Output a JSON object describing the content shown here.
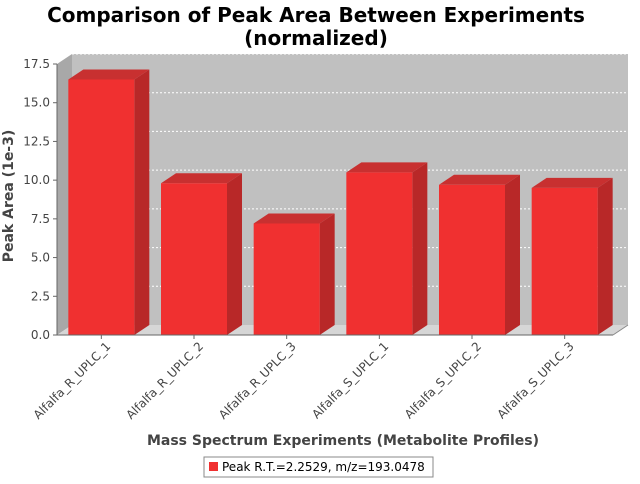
{
  "chart_data": {
    "type": "bar",
    "title": "Comparison of Peak Area Between Experiments",
    "subtitle": "(normalized)",
    "xlabel": "Mass Spectrum Experiments (Metabolite Profiles)",
    "ylabel": "Peak Area (1e-3)",
    "ylim": [
      0,
      17.5
    ],
    "yticks": [
      "0.0",
      "2.5",
      "5.0",
      "7.5",
      "10.0",
      "12.5",
      "15.0",
      "17.5"
    ],
    "grid": true,
    "legend_position": "bottom",
    "categories": [
      "Alfalfa_R_UPLC_1",
      "Alfalfa_R_UPLC_2",
      "Alfalfa_R_UPLC_3",
      "Alfalfa_S_UPLC_1",
      "Alfalfa_S_UPLC_2",
      "Alfalfa_S_UPLC_3"
    ],
    "series": [
      {
        "name": "Peak R.T.=2.2529, m/z=193.0478",
        "color": "#f03030",
        "values": [
          16.5,
          9.8,
          7.2,
          10.5,
          9.7,
          9.5
        ]
      }
    ],
    "colors": {
      "plot_background": "#c0c0c0",
      "bar_front": "#f03030",
      "bar_side": "#b82828",
      "bar_top": "#c83030"
    }
  }
}
